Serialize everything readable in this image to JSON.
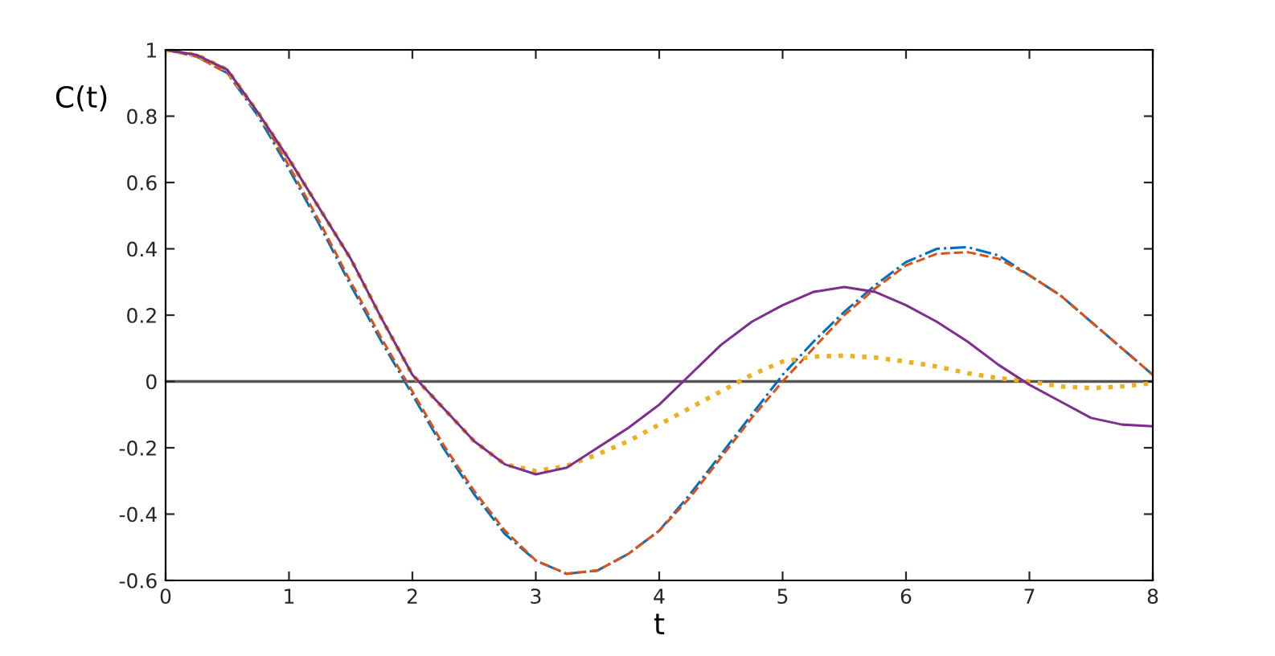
{
  "chart_data": {
    "type": "line",
    "xlabel": "t",
    "ylabel": "C(t)",
    "xlim": [
      0,
      8
    ],
    "ylim": [
      -0.6,
      1
    ],
    "xticks": [
      0,
      1,
      2,
      3,
      4,
      5,
      6,
      7,
      8
    ],
    "yticks": [
      -0.6,
      -0.4,
      -0.2,
      0,
      0.2,
      0.4,
      0.6,
      0.8,
      1
    ],
    "grid": false,
    "legend": false,
    "marker": "none",
    "x": [
      0,
      0.25,
      0.5,
      0.75,
      1,
      1.25,
      1.5,
      1.75,
      2,
      2.25,
      2.5,
      2.75,
      3,
      3.25,
      3.5,
      3.75,
      4,
      4.25,
      4.5,
      4.75,
      5,
      5.25,
      5.5,
      5.75,
      6,
      6.25,
      6.5,
      6.75,
      7,
      7.25,
      7.5,
      7.75,
      8
    ],
    "series": [
      {
        "color": "#0072bd",
        "line_style": "dashdot",
        "values": [
          1,
          0.98,
          0.93,
          0.8,
          0.64,
          0.47,
          0.29,
          0.12,
          -0.04,
          -0.2,
          -0.34,
          -0.46,
          -0.54,
          -0.58,
          -0.57,
          -0.52,
          -0.45,
          -0.34,
          -0.22,
          -0.1,
          0.02,
          0.12,
          0.21,
          0.29,
          0.36,
          0.4,
          0.405,
          0.38,
          0.32,
          0.26,
          0.18,
          0.1,
          0.02
        ]
      },
      {
        "color": "#d95319",
        "line_style": "dashed",
        "values": [
          1,
          0.98,
          0.93,
          0.81,
          0.65,
          0.48,
          0.3,
          0.13,
          -0.03,
          -0.19,
          -0.33,
          -0.45,
          -0.54,
          -0.58,
          -0.57,
          -0.52,
          -0.45,
          -0.35,
          -0.23,
          -0.11,
          0,
          0.1,
          0.2,
          0.28,
          0.35,
          0.385,
          0.39,
          0.37,
          0.32,
          0.26,
          0.18,
          0.1,
          0.02
        ]
      },
      {
        "color": "#edb120",
        "line_style": "dotted",
        "values": [
          1,
          0.985,
          0.94,
          0.81,
          0.67,
          0.52,
          0.37,
          0.19,
          0.02,
          -0.08,
          -0.18,
          -0.25,
          -0.27,
          -0.255,
          -0.22,
          -0.18,
          -0.13,
          -0.08,
          -0.03,
          0.02,
          0.06,
          0.075,
          0.078,
          0.072,
          0.06,
          0.045,
          0.025,
          0.01,
          0,
          -0.015,
          -0.02,
          -0.015,
          -0.005
        ]
      },
      {
        "color": "#7e2f8e",
        "line_style": "solid",
        "values": [
          1,
          0.985,
          0.94,
          0.81,
          0.67,
          0.52,
          0.37,
          0.19,
          0.02,
          -0.08,
          -0.18,
          -0.25,
          -0.28,
          -0.26,
          -0.2,
          -0.14,
          -0.07,
          0.02,
          0.11,
          0.18,
          0.23,
          0.27,
          0.285,
          0.27,
          0.23,
          0.18,
          0.12,
          0.05,
          -0.01,
          -0.06,
          -0.11,
          -0.13,
          -0.135
        ]
      }
    ],
    "ref_lines": [
      {
        "axis": "y",
        "value": 0,
        "color": "#555555",
        "line_style": "solid"
      }
    ]
  }
}
